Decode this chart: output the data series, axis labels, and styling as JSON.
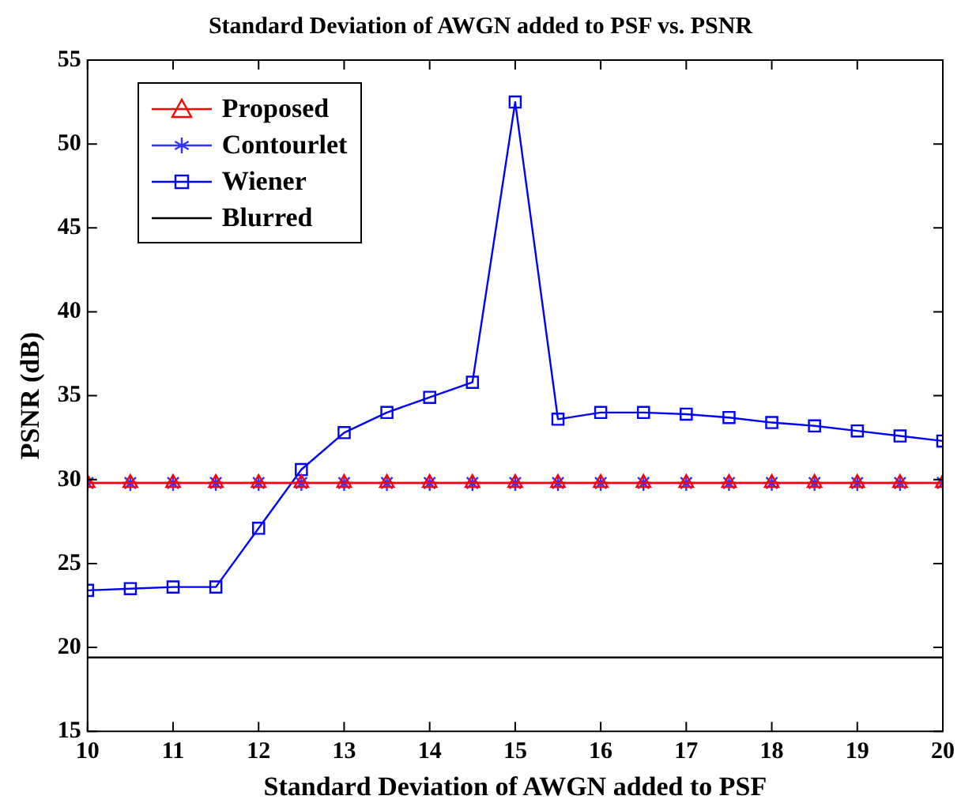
{
  "chart_data": {
    "type": "line",
    "title": "Standard Deviation of AWGN added to PSF vs. PSNR",
    "xlabel": "Standard Deviation of AWGN added to PSF",
    "ylabel": "PSNR (dB)",
    "x": [
      10,
      10.5,
      11,
      11.5,
      12,
      12.5,
      13,
      13.5,
      14,
      14.5,
      15,
      15.5,
      16,
      16.5,
      17,
      17.5,
      18,
      18.5,
      19,
      19.5,
      20
    ],
    "series": [
      {
        "name": "Proposed",
        "color": "#ff0000",
        "marker": "triangle",
        "values": [
          29.8,
          29.8,
          29.8,
          29.8,
          29.8,
          29.8,
          29.8,
          29.8,
          29.8,
          29.8,
          29.8,
          29.8,
          29.8,
          29.8,
          29.8,
          29.8,
          29.8,
          29.8,
          29.8,
          29.8,
          29.8
        ]
      },
      {
        "name": "Contourlet",
        "color": "#3333ff",
        "marker": "cross",
        "values": [
          29.8,
          29.8,
          29.8,
          29.8,
          29.8,
          29.8,
          29.8,
          29.8,
          29.8,
          29.8,
          29.8,
          29.8,
          29.8,
          29.8,
          29.8,
          29.8,
          29.8,
          29.8,
          29.8,
          29.8,
          29.8
        ]
      },
      {
        "name": "Wiener",
        "color": "#0000ff",
        "marker": "square",
        "values": [
          23.4,
          23.5,
          23.6,
          23.6,
          27.1,
          30.6,
          32.8,
          34,
          34.9,
          35.8,
          52.5,
          33.6,
          34,
          34,
          33.9,
          33.7,
          33.4,
          33.2,
          32.9,
          32.6,
          32.3
        ]
      },
      {
        "name": "Blurred",
        "color": "#000000",
        "marker": "none",
        "x": [
          10,
          20
        ],
        "values": [
          19.4,
          19.4
        ]
      }
    ],
    "xlim": [
      10,
      20
    ],
    "xticks": [
      10,
      11,
      12,
      13,
      14,
      15,
      16,
      17,
      18,
      19,
      20
    ],
    "ylim": [
      15,
      55
    ],
    "yticks": [
      15,
      20,
      25,
      30,
      35,
      40,
      45,
      50,
      55
    ],
    "legend": "top left",
    "line_style": "solid"
  }
}
